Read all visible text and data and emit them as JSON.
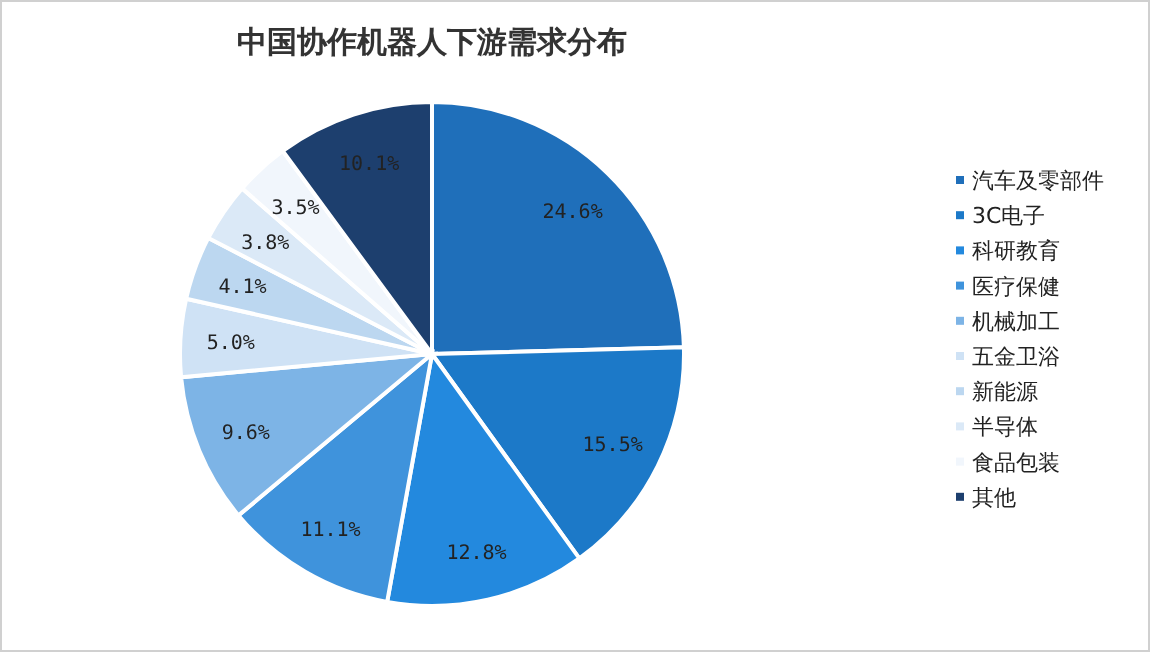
{
  "chart_data": {
    "type": "pie",
    "title": "中国协作机器人下游需求分布",
    "categories": [
      "汽车及零部件",
      "3C电子",
      "科研教育",
      "医疗保健",
      "机械加工",
      "五金卫浴",
      "新能源",
      "半导体",
      "食品包装",
      "其他"
    ],
    "values": [
      24.6,
      15.5,
      12.8,
      11.1,
      9.6,
      5.0,
      4.1,
      3.8,
      3.5,
      10.1
    ],
    "value_labels": [
      "24.6%",
      "15.5%",
      "12.8%",
      "11.1%",
      "9.6%",
      "5.0%",
      "4.1%",
      "3.8%",
      "3.5%",
      "10.1%"
    ],
    "colors": [
      "#1f6fba",
      "#1c79c8",
      "#2389de",
      "#3f93dc",
      "#7db4e6",
      "#cfe2f5",
      "#bcd7f0",
      "#dbe9f7",
      "#f1f6fc",
      "#1d3f6e"
    ],
    "legend": "right"
  }
}
